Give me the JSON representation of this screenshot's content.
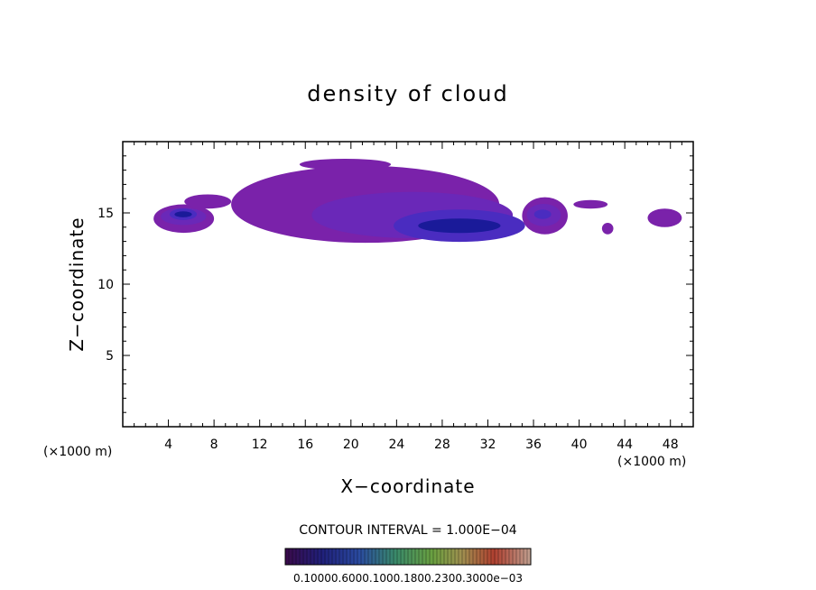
{
  "chart_data": {
    "type": "heatmap",
    "title": "density of cloud",
    "xlabel": "X−coordinate",
    "ylabel": "Z−coordinate",
    "x_unit": "(×1000 m)",
    "y_unit": "(×1000 m)",
    "xlim": [
      0,
      50
    ],
    "ylim": [
      0,
      20
    ],
    "x_ticks": [
      4,
      8,
      12,
      16,
      20,
      24,
      28,
      32,
      36,
      40,
      44,
      48
    ],
    "x_tick_labels": [
      "4",
      "8",
      "12",
      "16",
      "20",
      "24",
      "28",
      "32",
      "36",
      "40",
      "44",
      "48"
    ],
    "y_ticks": [
      5,
      10,
      15
    ],
    "y_tick_labels": [
      "5",
      "10",
      "15"
    ],
    "contour_interval_text": "CONTOUR INTERVAL = 1.000E−04",
    "colorbar_labels_text": "0.10000.6000.1000.1800.2300.3000e−03",
    "colorbar_labels": [
      "0.1000",
      "0.6000",
      "1.000",
      "1.800",
      "2.300",
      "3.000e−03"
    ],
    "colors": {
      "low": "#7a22aa",
      "mid": "#4a2cc0",
      "high": "#1a1a99"
    },
    "regions": [
      {
        "name": "cloud-small-left",
        "x": [
          2.7,
          8.0
        ],
        "z": [
          13.6,
          15.6
        ],
        "core_x": 5.3,
        "core_z": 14.9,
        "peak": 0.6
      },
      {
        "name": "cloud-left-top",
        "x": [
          5.4,
          9.5
        ],
        "z": [
          15.3,
          16.3
        ],
        "core_x": 7.5,
        "core_z": 15.8,
        "peak": 0.2
      },
      {
        "name": "cloud-main",
        "x": [
          9.5,
          33.0
        ],
        "z": [
          12.9,
          18.3
        ],
        "core_x": 29.5,
        "core_z": 14.1,
        "peak": 1.0
      },
      {
        "name": "cloud-top-strip",
        "x": [
          15.5,
          23.5
        ],
        "z": [
          18.0,
          18.8
        ],
        "core_x": 19.0,
        "core_z": 18.4,
        "peak": 0.2
      },
      {
        "name": "cloud-36",
        "x": [
          35.0,
          39.0
        ],
        "z": [
          13.5,
          16.1
        ],
        "core_x": 36.8,
        "core_z": 14.9,
        "peak": 0.3
      },
      {
        "name": "cloud-42-top",
        "x": [
          39.5,
          42.5
        ],
        "z": [
          15.3,
          15.9
        ],
        "core_x": 41.0,
        "core_z": 15.6,
        "peak": 0.15
      },
      {
        "name": "cloud-43",
        "x": [
          42.0,
          43.0
        ],
        "z": [
          13.5,
          14.3
        ],
        "core_x": 42.5,
        "core_z": 13.9,
        "peak": 0.15
      },
      {
        "name": "cloud-48",
        "x": [
          46.0,
          49.0
        ],
        "z": [
          14.0,
          15.3
        ],
        "core_x": 47.5,
        "core_z": 14.7,
        "peak": 0.2
      }
    ]
  }
}
